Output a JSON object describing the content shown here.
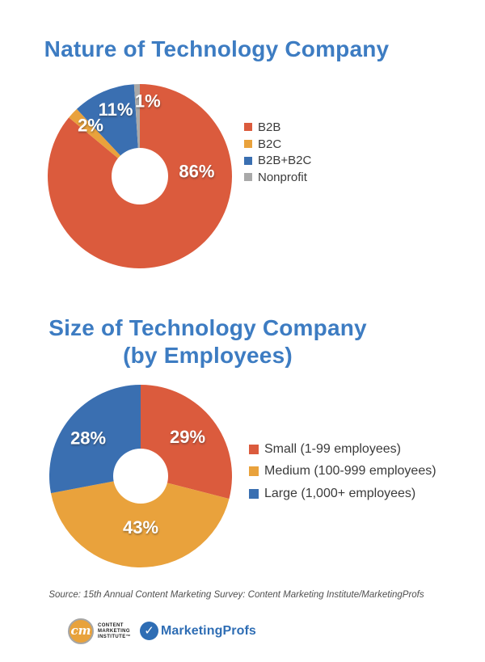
{
  "styles": {
    "title_color": "#3D7CC2",
    "chart_label_color": "#FFFFFF",
    "legend_text_color": "#3B3B3B",
    "source_text_color": "#4F4F4F",
    "cmi_orange": "#E8A23C",
    "cmi_ring": "#A6A6A6",
    "cmi_text_color": "#1C1C1C",
    "marketingprofs_blue": "#2E6DB4",
    "background": "#FFFFFF"
  },
  "chart_data": [
    {
      "type": "pie",
      "subtype": "donut",
      "title": "Nature of Technology Company",
      "start_angle_deg": 0,
      "direction": "clockwise",
      "legend_position": "right",
      "grid": false,
      "segments": [
        {
          "label": "B2B",
          "value": 86,
          "data_label": "86%",
          "color": "#DB5B3D",
          "label_angle_deg": 85,
          "label_radius_frac": 0.62
        },
        {
          "label": "B2C",
          "value": 2,
          "data_label": "2%",
          "color": "#E9A23C",
          "label_angle_deg": 316,
          "label_radius_frac": 0.77
        },
        {
          "label": "B2B+B2C",
          "value": 11,
          "data_label": "11%",
          "color": "#3A6FB1",
          "label_angle_deg": 340,
          "label_radius_frac": 0.77
        },
        {
          "label": "Nonprofit",
          "value": 1,
          "data_label": "1%",
          "color": "#A9A9A9",
          "label_angle_deg": 6,
          "label_radius_frac": 0.82
        }
      ]
    },
    {
      "type": "pie",
      "subtype": "donut",
      "title": "Size of Technology Company (by Employees)",
      "title_lines": [
        "Size of Technology Company",
        "(by Employees)"
      ],
      "start_angle_deg": 0,
      "direction": "clockwise",
      "legend_position": "right",
      "grid": false,
      "segments": [
        {
          "label": "Small (1-99 employees)",
          "value": 29,
          "data_label": "29%",
          "color": "#DB5B3D",
          "label_angle_deg": 50,
          "label_radius_frac": 0.67
        },
        {
          "label": "Medium (100-999 employees)",
          "value": 43,
          "data_label": "43%",
          "color": "#E9A23C",
          "label_angle_deg": 180,
          "label_radius_frac": 0.56
        },
        {
          "label": "Large (1,000+ employees)",
          "value": 28,
          "data_label": "28%",
          "color": "#3A6FB1",
          "label_angle_deg": 306,
          "label_radius_frac": 0.71
        }
      ]
    }
  ],
  "footer": {
    "source": "Source: 15th Annual Content Marketing Survey: Content Marketing Institute/MarketingProfs",
    "cmi": {
      "monogram": "cm",
      "lines": [
        "CONTENT",
        "MARKETING",
        "INSTITUTE™"
      ]
    },
    "marketingprofs": {
      "check_glyph": "✓",
      "name": "MarketingProfs"
    }
  }
}
